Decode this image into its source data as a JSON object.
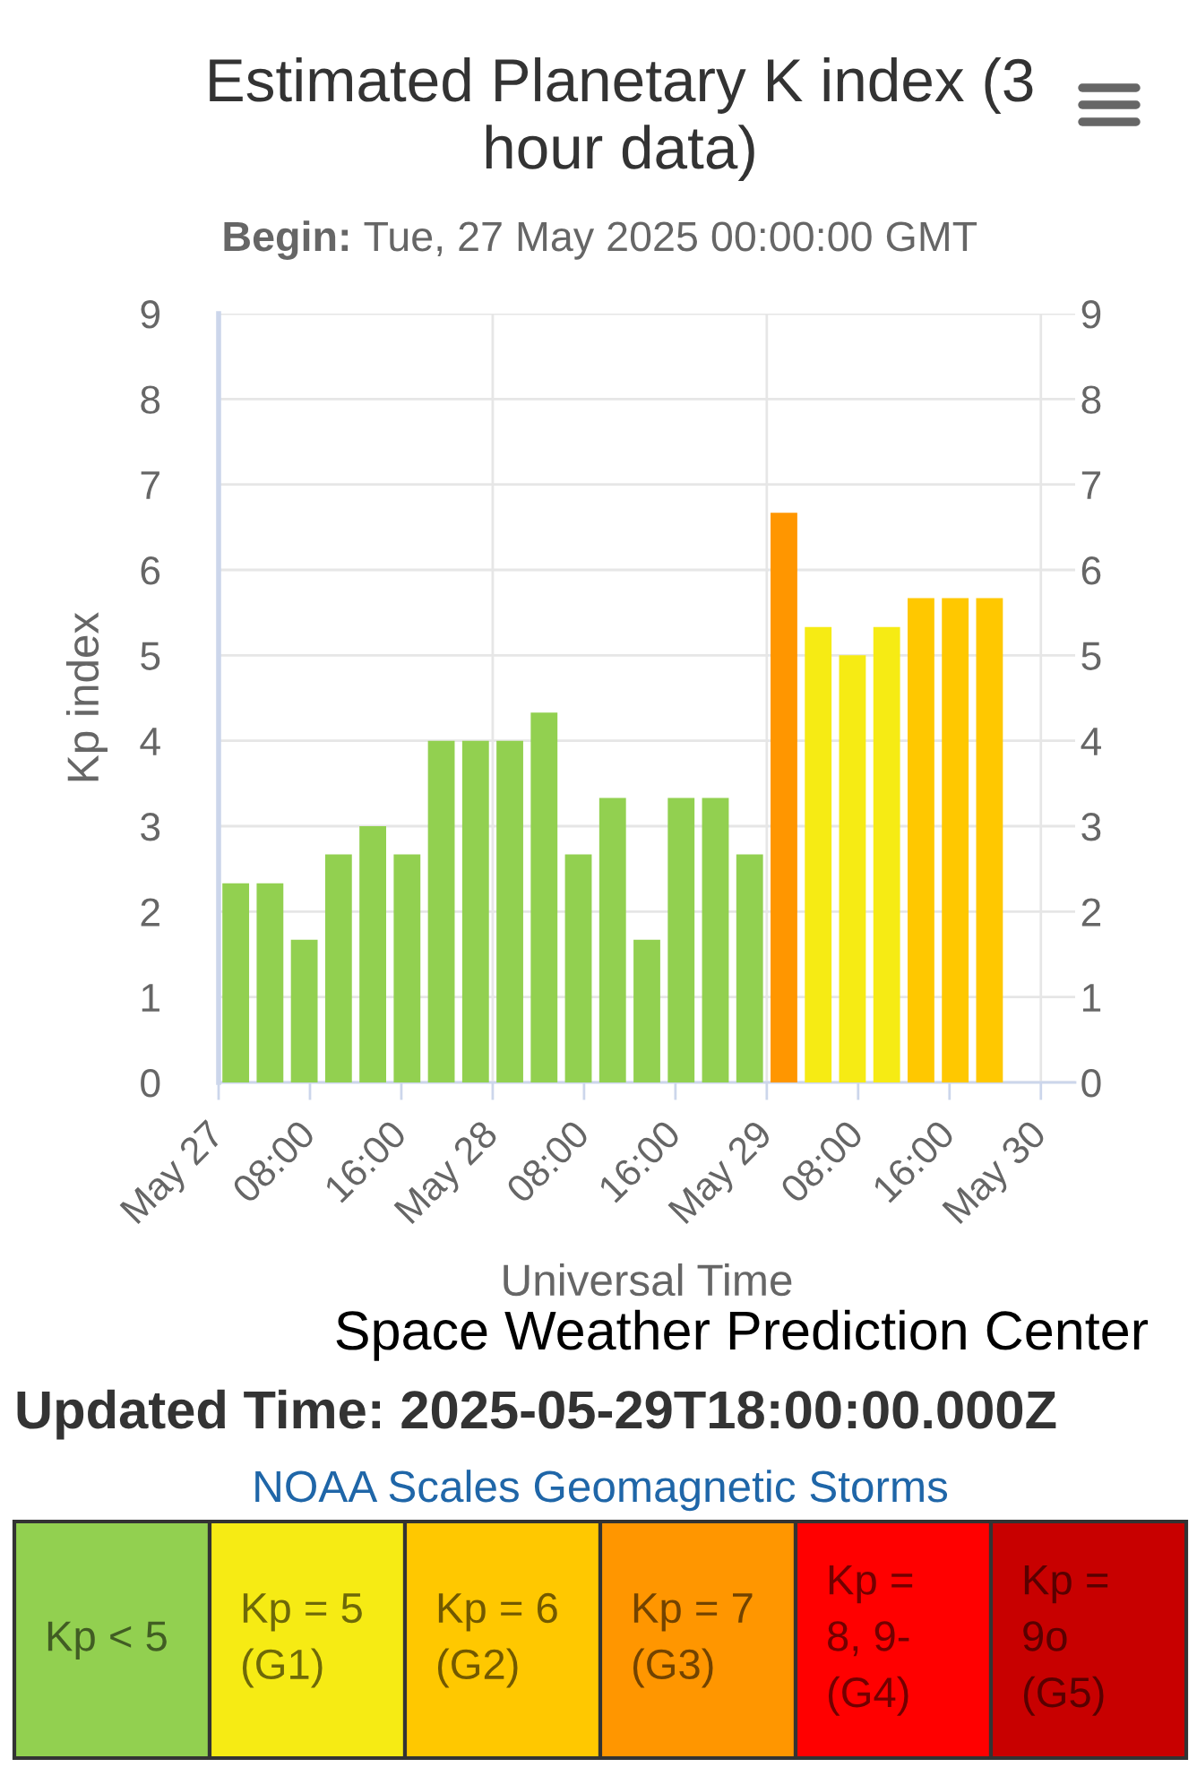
{
  "chart_data": [
    {
      "type": "bar",
      "title": "Estimated Planetary K index (3 hour data)",
      "subtitle": "Begin: Tue, 27 May 2025 00:00:00 GMT",
      "xlabel": "Universal Time",
      "ylabel": "Kp index",
      "x": [
        "2025-05-27T01:30",
        "2025-05-27T04:30",
        "2025-05-27T07:30",
        "2025-05-27T10:30",
        "2025-05-27T13:30",
        "2025-05-27T16:30",
        "2025-05-27T19:30",
        "2025-05-27T22:30",
        "2025-05-28T01:30",
        "2025-05-28T04:30",
        "2025-05-28T07:30",
        "2025-05-28T10:30",
        "2025-05-28T13:30",
        "2025-05-28T16:30",
        "2025-05-28T19:30",
        "2025-05-28T22:30",
        "2025-05-29T01:30",
        "2025-05-29T04:30",
        "2025-05-29T07:30",
        "2025-05-29T10:30",
        "2025-05-29T13:30",
        "2025-05-29T16:30",
        "2025-05-29T19:30"
      ],
      "values": [
        2.33,
        2.33,
        1.67,
        2.67,
        3,
        2.67,
        4,
        4,
        4,
        4.33,
        2.67,
        3.33,
        1.67,
        3.33,
        3.33,
        2.67,
        6.67,
        5.33,
        5,
        5.33,
        5.67,
        5.67,
        5.67
      ],
      "colors": [
        "#92d050",
        "#92d050",
        "#92d050",
        "#92d050",
        "#92d050",
        "#92d050",
        "#92d050",
        "#92d050",
        "#92d050",
        "#92d050",
        "#92d050",
        "#92d050",
        "#92d050",
        "#92d050",
        "#92d050",
        "#92d050",
        "#ff9600",
        "#f6eb14",
        "#f6eb14",
        "#f6eb14",
        "#ffc800",
        "#ffc800",
        "#ffc800"
      ],
      "xlim": [
        "2025-05-27T00:00",
        "2025-05-30T03:00"
      ],
      "xticks": [
        {
          "value": "2025-05-27T00:00",
          "label": "May 27"
        },
        {
          "value": "2025-05-27T08:00",
          "label": "08:00"
        },
        {
          "value": "2025-05-27T16:00",
          "label": "16:00"
        },
        {
          "value": "2025-05-28T00:00",
          "label": "May 28"
        },
        {
          "value": "2025-05-28T08:00",
          "label": "08:00"
        },
        {
          "value": "2025-05-28T16:00",
          "label": "16:00"
        },
        {
          "value": "2025-05-29T00:00",
          "label": "May 29"
        },
        {
          "value": "2025-05-29T08:00",
          "label": "08:00"
        },
        {
          "value": "2025-05-29T16:00",
          "label": "16:00"
        },
        {
          "value": "2025-05-30T00:00",
          "label": "May 30"
        }
      ],
      "ylim": [
        0,
        9
      ],
      "yticks": [
        0,
        1,
        2,
        3,
        4,
        5,
        6,
        7,
        8,
        9
      ],
      "y2lim": [
        0,
        9
      ],
      "y2ticks": [
        0,
        1,
        2,
        3,
        4,
        5,
        6,
        7,
        8,
        9
      ],
      "grid": "y",
      "ref_lines": [
        {
          "axis": "x",
          "value": "2025-05-28T00:00",
          "color": "#e6e6e6"
        },
        {
          "axis": "x",
          "value": "2025-05-29T00:00",
          "color": "#e6e6e6"
        },
        {
          "axis": "x",
          "value": "2025-05-30T00:00",
          "color": "#e6e6e6"
        }
      ],
      "annotations": [
        "Space Weather Prediction Center",
        "Updated Time: 2025-05-29T18:00:00.000Z"
      ]
    },
    {
      "type": "other",
      "title": "NOAA Scales Geomagnetic Storms",
      "categories": [
        "Kp < 5",
        "Kp = 5 (G1)",
        "Kp = 6 (G2)",
        "Kp = 7 (G3)",
        "Kp = 8, 9- (G4)",
        "Kp = 9o (G5)"
      ],
      "colors": [
        "#92d050",
        "#f6eb14",
        "#ffc800",
        "#ff9600",
        "#ff0000",
        "#c80000"
      ]
    }
  ]
}
